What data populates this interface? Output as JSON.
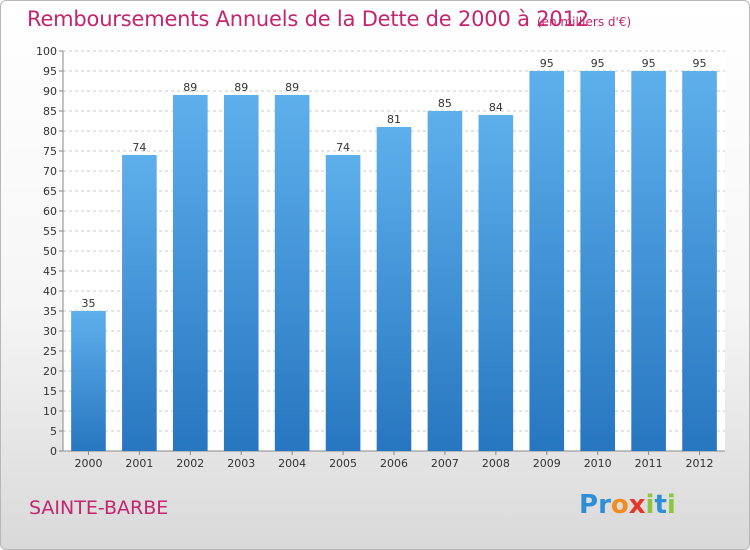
{
  "chart_data": {
    "type": "bar",
    "title": "Remboursements Annuels de la Dette de 2000 à 2012",
    "unit": "(en milliers d'€)",
    "categories": [
      "2000",
      "2001",
      "2002",
      "2003",
      "2004",
      "2005",
      "2006",
      "2007",
      "2008",
      "2009",
      "2010",
      "2011",
      "2012"
    ],
    "values": [
      35,
      74,
      89,
      89,
      89,
      74,
      81,
      85,
      84,
      95,
      95,
      95,
      95
    ],
    "ylim": [
      0,
      100
    ],
    "ytick_step": 5,
    "grid": true,
    "bar_color": "#4a9ee0"
  },
  "footer": {
    "commune": "SAINTE-BARBE",
    "logo": {
      "text": "Proxiti",
      "letters": [
        {
          "ch": "P",
          "color": "#2f8fd6"
        },
        {
          "ch": "r",
          "color": "#2f8fd6"
        },
        {
          "ch": "o",
          "color": "#f28c1e"
        },
        {
          "ch": "x",
          "color": "#e8352a"
        },
        {
          "ch": "i",
          "color": "#8cc63f"
        },
        {
          "ch": "t",
          "color": "#2f8fd6"
        },
        {
          "ch": "i",
          "color": "#8cc63f"
        }
      ]
    }
  }
}
